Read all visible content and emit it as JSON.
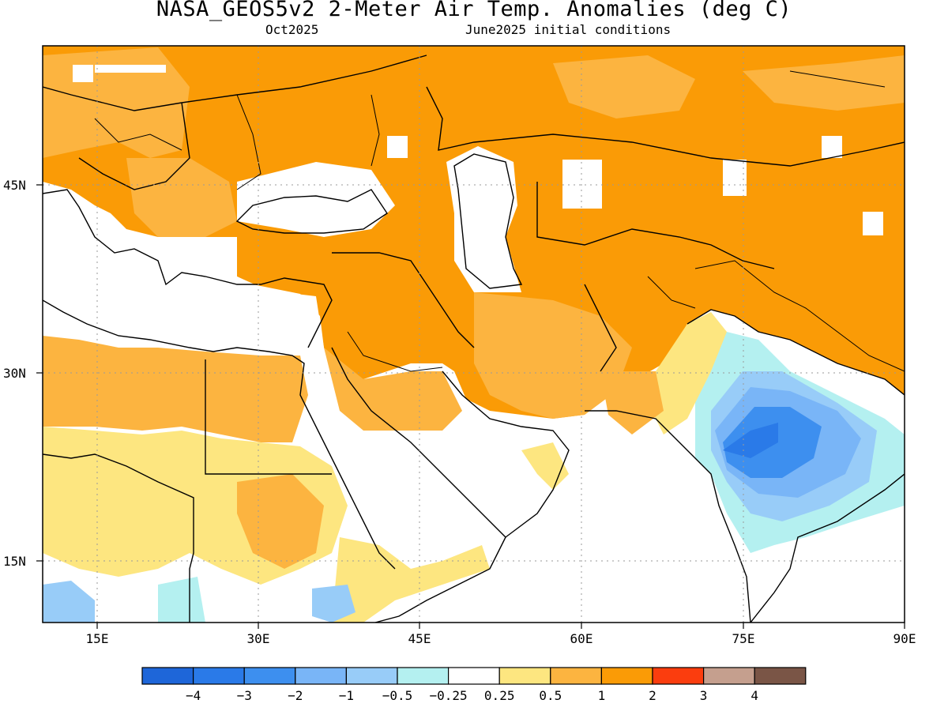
{
  "header": {
    "title": "NASA_GEOS5v2 2-Meter Air Temp. Anomalies (deg C)",
    "subtitle_left": "Oct2025",
    "subtitle_right": "June2025 initial conditions"
  },
  "map": {
    "lon_range": [
      10,
      90
    ],
    "lat_range": [
      8.5,
      56
    ],
    "lon_ticks": [
      "15E",
      "30E",
      "45E",
      "60E",
      "75E",
      "90E"
    ],
    "lat_ticks": [
      "15N",
      "30N",
      "45N"
    ]
  },
  "colorbar": {
    "colors": [
      "#1e66d9",
      "#2a7ae8",
      "#3d8fef",
      "#79b5f7",
      "#98ccf8",
      "#b4f0f0",
      "#ffffff",
      "#fde680",
      "#fcb440",
      "#fa9b06",
      "#fb3d0e",
      "#c59f8e",
      "#7a5546"
    ],
    "labels": [
      "−4",
      "−3",
      "−2",
      "−1",
      "−0.5",
      "−0.25",
      "0.25",
      "0.5",
      "1",
      "2",
      "3",
      "4"
    ]
  }
}
